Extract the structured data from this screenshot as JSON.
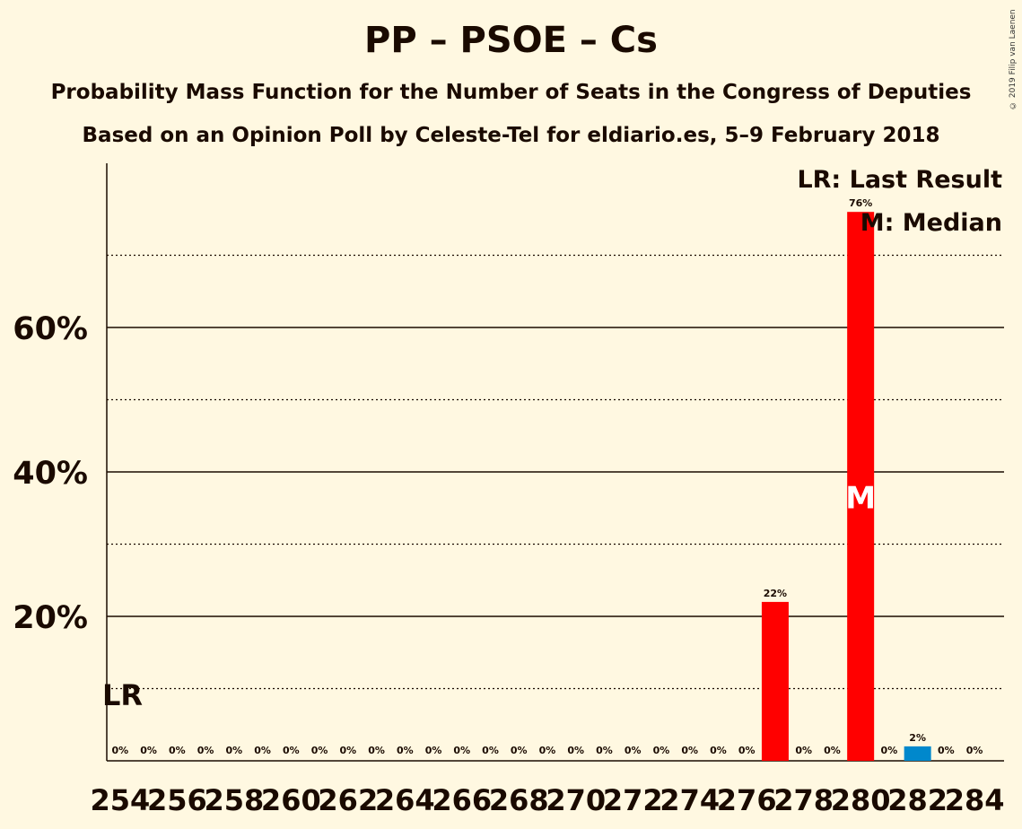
{
  "header": {
    "title": "PP – PSOE – Cs",
    "subtitle_1": "Probability Mass Function for the Number of Seats in the Congress of Deputies",
    "subtitle_2": "Based on an Opinion Poll by Celeste-Tel for eldiario.es, 5–9 February 2018",
    "copyright": "© 2019 Filip van Laenen"
  },
  "legend": {
    "last_result": "LR: Last Result",
    "median": "M: Median"
  },
  "chart_data": {
    "type": "bar",
    "categories": [
      254,
      255,
      256,
      257,
      258,
      259,
      260,
      261,
      262,
      263,
      264,
      265,
      266,
      267,
      268,
      269,
      270,
      271,
      272,
      273,
      274,
      275,
      276,
      277,
      278,
      279,
      280,
      281,
      282,
      283,
      284
    ],
    "values": [
      0,
      0,
      0,
      0,
      0,
      0,
      0,
      0,
      0,
      0,
      0,
      0,
      0,
      0,
      0,
      0,
      0,
      0,
      0,
      0,
      0,
      0,
      0,
      22,
      0,
      0,
      76,
      0,
      2,
      0,
      0
    ],
    "data_labels": [
      "0%",
      "0%",
      "0%",
      "0%",
      "0%",
      "0%",
      "0%",
      "0%",
      "0%",
      "0%",
      "0%",
      "0%",
      "0%",
      "0%",
      "0%",
      "0%",
      "0%",
      "0%",
      "0%",
      "0%",
      "0%",
      "0%",
      "0%",
      "22%",
      "0%",
      "0%",
      "76%",
      "0%",
      "2%",
      "0%",
      "0%"
    ],
    "x_tick_labels": [
      "254",
      "256",
      "258",
      "260",
      "262",
      "264",
      "266",
      "268",
      "270",
      "272",
      "274",
      "276",
      "278",
      "280",
      "282",
      "284"
    ],
    "y_tick_labels": [
      "20%",
      "40%",
      "60%"
    ],
    "ylim": [
      0,
      82
    ],
    "major_gridlines": [
      20,
      40,
      60
    ],
    "minor_gridlines": [
      10,
      30,
      50,
      70
    ],
    "last_result_seat": 254,
    "last_result_marker": "LR",
    "median_seat": 280,
    "median_marker": "M",
    "colors": {
      "majority_bar": "#FF0000",
      "minority_bar": "#0088CC",
      "text": "#1a0a00",
      "background": "#FFF8E1"
    },
    "bar_colors": {
      "277": "#FF0000",
      "280": "#FF0000",
      "282": "#0088CC"
    }
  }
}
